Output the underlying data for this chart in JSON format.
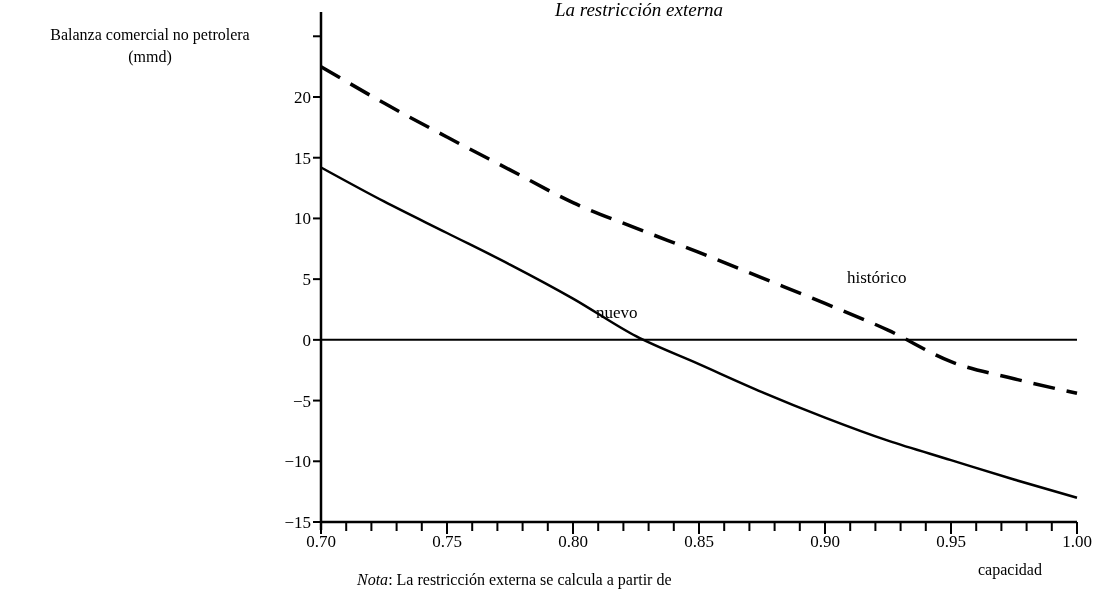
{
  "chart_data": {
    "type": "line",
    "title": "La restricción externa",
    "ylabel": "Balanza comercial no petrolera\n(mmd)",
    "xlabel": "capacidad",
    "annotations": [
      "Nota: La restricción externa se calcula a partir de"
    ],
    "x": [
      0.7,
      0.725,
      0.75,
      0.775,
      0.8,
      0.825,
      0.85,
      0.875,
      0.9,
      0.925,
      0.95,
      0.975,
      1.0
    ],
    "series": [
      {
        "name": "histórico",
        "color": "#000000",
        "line_style": "dashed",
        "values": [
          22.5,
          19.5,
          16.7,
          14.0,
          11.3,
          9.2,
          7.2,
          5.1,
          3.0,
          0.8,
          -1.8,
          -3.2,
          -4.4
        ]
      },
      {
        "name": "nuevo",
        "color": "#000000",
        "line_style": "solid",
        "values": [
          14.2,
          11.4,
          8.8,
          6.2,
          3.4,
          0.3,
          -2.0,
          -4.3,
          -6.4,
          -8.3,
          -9.9,
          -11.5,
          -13.0
        ]
      }
    ],
    "xlim": [
      0.7,
      1.0
    ],
    "ylim": [
      -15,
      27
    ],
    "xticks": [
      {
        "value": 0.7,
        "label": "0.70"
      },
      {
        "value": 0.71,
        "label": null
      },
      {
        "value": 0.72,
        "label": null
      },
      {
        "value": 0.73,
        "label": null
      },
      {
        "value": 0.74,
        "label": null
      },
      {
        "value": 0.75,
        "label": "0.75"
      },
      {
        "value": 0.76,
        "label": null
      },
      {
        "value": 0.77,
        "label": null
      },
      {
        "value": 0.78,
        "label": null
      },
      {
        "value": 0.79,
        "label": null
      },
      {
        "value": 0.8,
        "label": "0.80"
      },
      {
        "value": 0.81,
        "label": null
      },
      {
        "value": 0.82,
        "label": null
      },
      {
        "value": 0.83,
        "label": null
      },
      {
        "value": 0.84,
        "label": null
      },
      {
        "value": 0.85,
        "label": "0.85"
      },
      {
        "value": 0.86,
        "label": null
      },
      {
        "value": 0.87,
        "label": null
      },
      {
        "value": 0.88,
        "label": null
      },
      {
        "value": 0.89,
        "label": null
      },
      {
        "value": 0.9,
        "label": "0.90"
      },
      {
        "value": 0.91,
        "label": null
      },
      {
        "value": 0.92,
        "label": null
      },
      {
        "value": 0.93,
        "label": null
      },
      {
        "value": 0.94,
        "label": null
      },
      {
        "value": 0.95,
        "label": "0.95"
      },
      {
        "value": 0.96,
        "label": null
      },
      {
        "value": 0.97,
        "label": null
      },
      {
        "value": 0.98,
        "label": null
      },
      {
        "value": 0.99,
        "label": null
      },
      {
        "value": 1.0,
        "label": "1.00"
      }
    ],
    "yticks": [
      {
        "value": -15,
        "label": "−15"
      },
      {
        "value": -10,
        "label": "−10"
      },
      {
        "value": -5,
        "label": "−5"
      },
      0,
      5,
      10,
      15,
      20,
      {
        "value": 25,
        "label": null
      }
    ],
    "ref_lines": [
      {
        "axis": "y",
        "value": 0,
        "color": "#000000"
      }
    ],
    "grid": false,
    "marker": "none"
  }
}
